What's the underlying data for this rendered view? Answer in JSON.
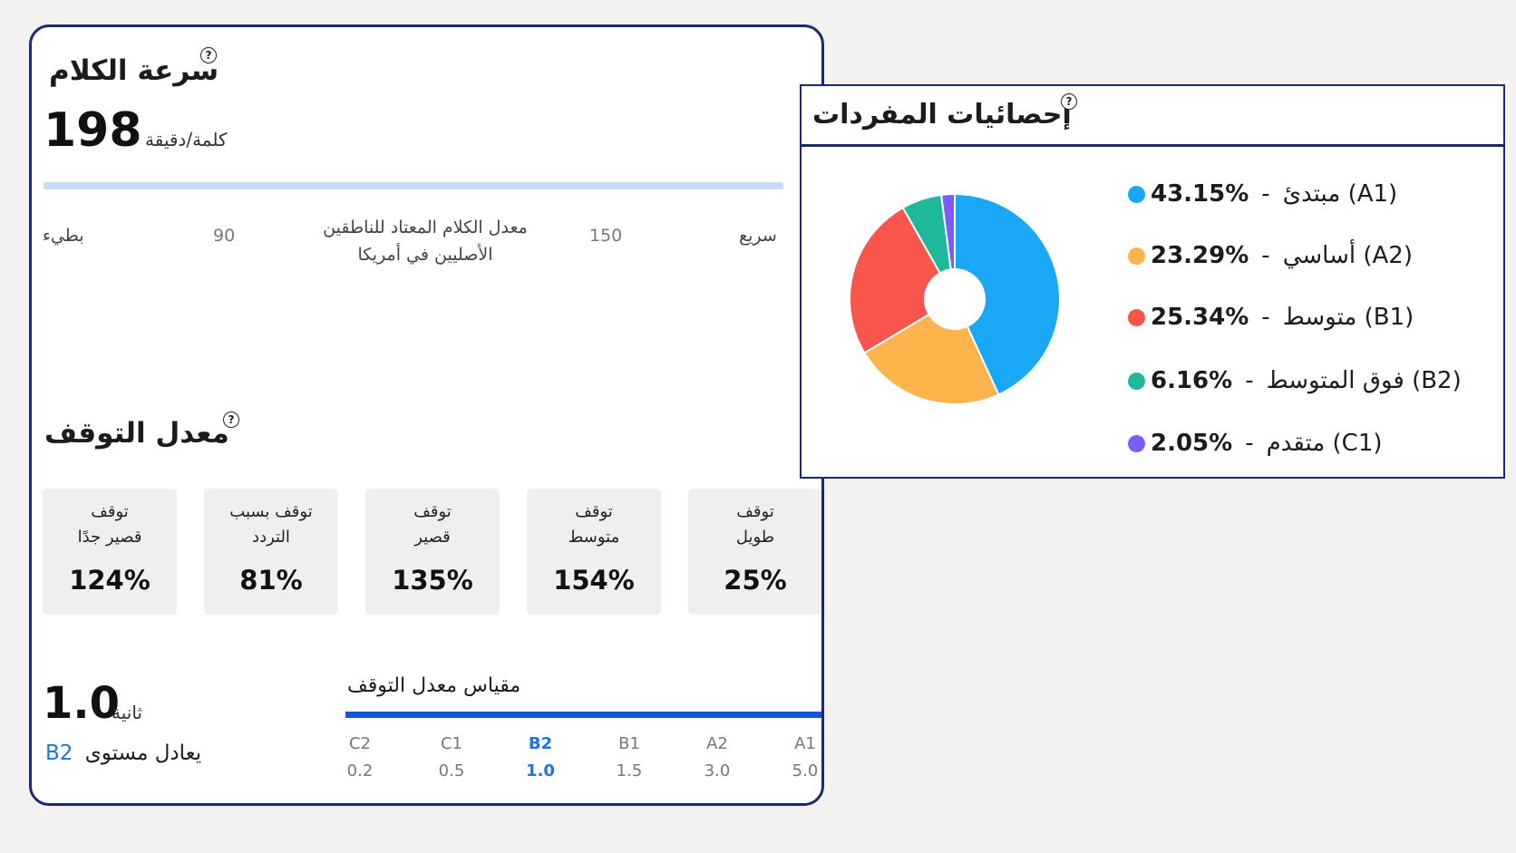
{
  "speech_rate": {
    "title": "سرعة الكلام",
    "value": "198",
    "unit": "كلمة/دقيقة",
    "scale": {
      "slow": "بطيء",
      "slow_threshold": "90",
      "native_line1": "معدل الكلام المعتاد  للناطقين",
      "native_line2": "الأصليين في أمريكا",
      "fast_threshold": "150",
      "fast": "سريع"
    }
  },
  "pause_rate": {
    "title": "معدل التوقف",
    "boxes": [
      {
        "label": "توقف\nقصير جدًا",
        "value": "124%"
      },
      {
        "label": "توقف بسبب\nالتردد",
        "value": "81%"
      },
      {
        "label": "توقف\nقصير",
        "value": "135%"
      },
      {
        "label": "توقف\nمتوسط",
        "value": "154%"
      },
      {
        "label": "توقف\nطويل",
        "value": "25%"
      }
    ],
    "seconds_value": "1.0",
    "seconds_unit": "ثانية",
    "equivalent_label": "يعادل مستوى",
    "equivalent_level": "B2",
    "scale_title": "مقياس معدل التوقف",
    "levels": [
      {
        "name": "C2",
        "value": "0.2",
        "active": false
      },
      {
        "name": "C1",
        "value": "0.5",
        "active": false
      },
      {
        "name": "B2",
        "value": "1.0",
        "active": true
      },
      {
        "name": "B1",
        "value": "1.5",
        "active": false
      },
      {
        "name": "A2",
        "value": "3.0",
        "active": false
      },
      {
        "name": "A1",
        "value": "5.0",
        "active": false
      }
    ]
  },
  "vocabulary": {
    "title": "إحصائيات المفردات",
    "legend": [
      {
        "pct": "43.15%",
        "sep": "-",
        "name": "مبتدئ (A1)",
        "color": "#1aa7f5"
      },
      {
        "pct": "23.29%",
        "sep": "-",
        "name": "أساسي (A2)",
        "color": "#fdb44d"
      },
      {
        "pct": "25.34%",
        "sep": "-",
        "name": "متوسط (B1)",
        "color": "#f8554c"
      },
      {
        "pct": "6.16%",
        "sep": "-",
        "name": "فوق المتوسط (B2)",
        "color": "#1db99a"
      },
      {
        "pct": "2.05%",
        "sep": "-",
        "name": "متقدم (C1)",
        "color": "#7c5cf5"
      }
    ]
  },
  "chart_data": {
    "type": "pie",
    "categories": [
      "مبتدئ (A1)",
      "أساسي (A2)",
      "متوسط (B1)",
      "فوق المتوسط (B2)",
      "متقدم (C1)"
    ],
    "values": [
      43.15,
      23.29,
      25.34,
      6.16,
      2.05
    ],
    "colors": [
      "#1aa7f5",
      "#fdb44d",
      "#f8554c",
      "#1db99a",
      "#7c5cf5"
    ],
    "donut": true
  },
  "icons": {
    "help": "?"
  }
}
